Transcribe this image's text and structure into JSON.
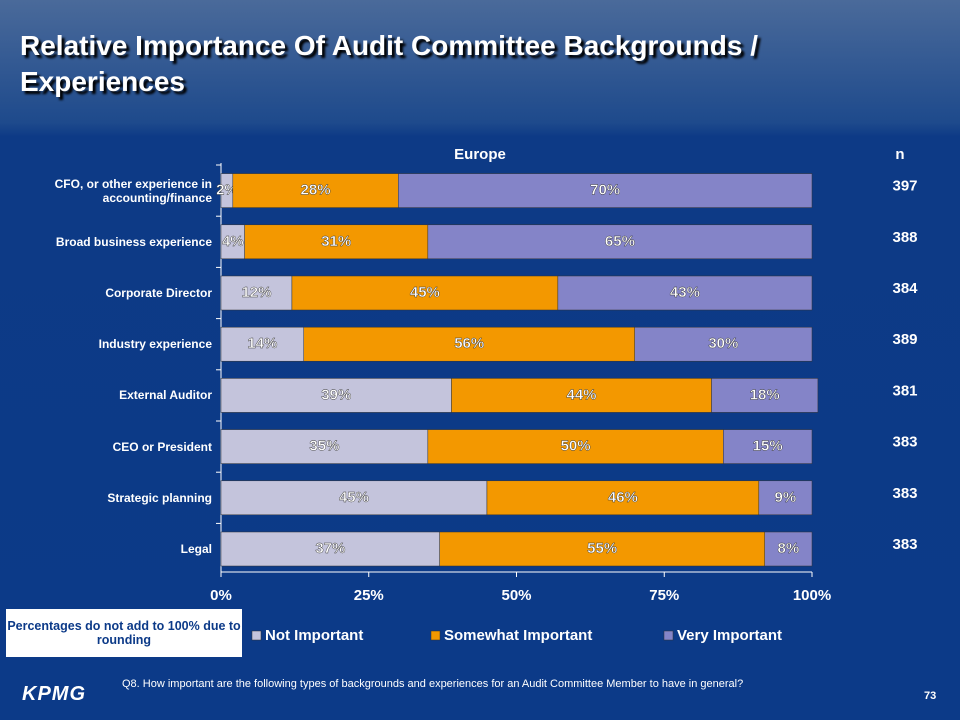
{
  "chart_data": {
    "type": "stacked-bar-horizontal",
    "title": "Relative Importance Of Audit Committee Backgrounds / Experiences",
    "subtitle": "Europe",
    "n_label": "n",
    "categories": [
      "CFO, or other experience in accounting/finance",
      "Broad business experience",
      "Corporate Director",
      "Industry experience",
      "External Auditor",
      "CEO or President",
      "Strategic planning",
      "Legal"
    ],
    "n_values": [
      397,
      388,
      384,
      389,
      381,
      383,
      383,
      383
    ],
    "series": [
      {
        "name": "Not Important",
        "color": "#c4c4dc",
        "values": [
          2,
          4,
          12,
          14,
          39,
          35,
          45,
          37
        ],
        "value_labels": [
          "2%",
          "4%",
          "12%",
          "14%",
          "39%",
          "35%",
          "45%",
          "37%"
        ]
      },
      {
        "name": "Somewhat Important",
        "color": "#f39800",
        "values": [
          28,
          31,
          45,
          56,
          44,
          50,
          46,
          55
        ],
        "value_labels": [
          "28%",
          "31%",
          "45%",
          "56%",
          "44%",
          "50%",
          "46%",
          "55%"
        ]
      },
      {
        "name": "Very Important",
        "color": "#8484c8",
        "values": [
          70,
          65,
          43,
          30,
          18,
          15,
          9,
          8
        ],
        "value_labels": [
          "70%",
          "65%",
          "43%",
          "30%",
          "18%",
          "15%",
          "9%",
          "8%"
        ]
      }
    ],
    "xlim": [
      0,
      100
    ],
    "xticks": [
      {
        "value": 0,
        "label": "0%"
      },
      {
        "value": 25,
        "label": "25%"
      },
      {
        "value": 50,
        "label": "50%"
      },
      {
        "value": 75,
        "label": "75%"
      },
      {
        "value": 100,
        "label": "100%"
      }
    ],
    "note": "Percentages do not add to 100% due to rounding",
    "question": "Q8. How important are the following types of backgrounds and experiences for an Audit Committee Member to have in general?",
    "logo": "KPMG",
    "page_number": "73"
  }
}
